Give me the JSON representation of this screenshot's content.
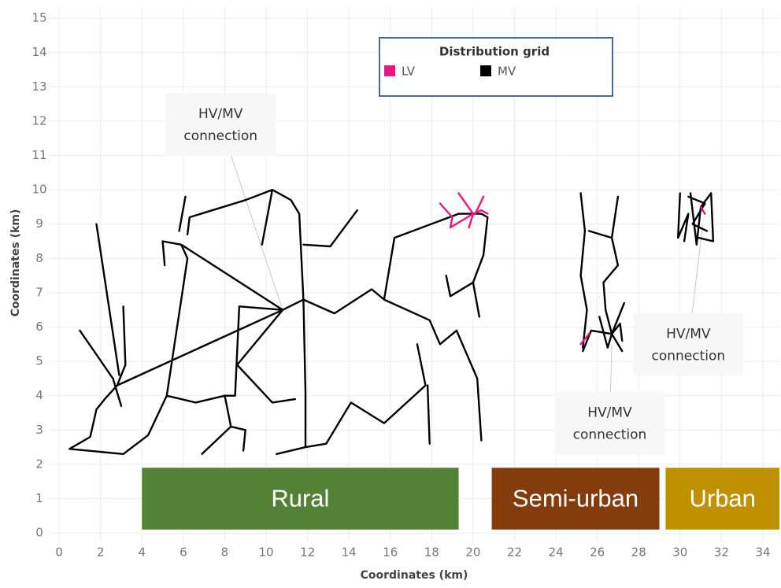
{
  "chart_data": {
    "type": "network",
    "xlabel": "Coordinates (km)",
    "ylabel": "Coordinates (km)",
    "xlim": [
      -0.5,
      34.8
    ],
    "ylim": [
      -0.25,
      15.3
    ],
    "xticks": [
      0,
      2,
      4,
      6,
      8,
      10,
      12,
      14,
      16,
      18,
      20,
      22,
      24,
      26,
      28,
      30,
      32,
      34
    ],
    "yticks": [
      0,
      1,
      2,
      3,
      4,
      5,
      6,
      7,
      8,
      9,
      10,
      11,
      12,
      13,
      14,
      15
    ],
    "grid": true,
    "legend": {
      "title": "Distribution grid",
      "position": "top"
    },
    "series": [
      {
        "name": "LV",
        "color": "#e8177b",
        "x": [
          18.4,
          19.0,
          18.9,
          20.0,
          20.4,
          20.7,
          null,
          19.3,
          20.0,
          19.8,
          null,
          20.5,
          20.1,
          null,
          25.2,
          25.6,
          null,
          31.0,
          31.2
        ],
        "y": [
          9.6,
          9.2,
          8.9,
          9.3,
          9.4,
          9.3,
          null,
          9.9,
          9.3,
          8.9,
          null,
          9.8,
          9.3,
          null,
          5.5,
          5.8,
          null,
          9.5,
          9.3
        ]
      },
      {
        "name": "MV",
        "color": "#000000",
        "x": [
          10.8,
          2.8,
          null,
          10.8,
          5.9,
          null,
          10.8,
          8.6,
          null,
          0.5,
          1.5,
          1.8,
          2.2,
          2.8,
          3.2,
          3.1,
          null,
          1.8,
          2.9,
          null,
          1.0,
          2.6,
          3.0,
          null,
          0.5,
          3.1,
          4.3,
          5.2,
          6.2,
          5.9,
          5.0,
          5.1,
          null,
          6.1,
          5.8,
          null,
          6.2,
          6.3,
          9.0,
          10.3,
          11.2,
          11.6,
          11.8,
          null,
          9.8,
          10.3,
          null,
          11.8,
          13.1,
          14.4,
          null,
          10.8,
          11.8,
          13.3,
          15.1,
          15.7,
          17.9,
          18.4,
          19.2,
          20.2,
          20.4,
          null,
          15.7,
          16.2,
          19.3,
          20.4,
          20.7,
          20.5,
          20.0,
          18.9,
          18.7,
          null,
          20.0,
          20.3,
          null,
          11.8,
          11.9,
          11.9,
          10.5,
          null,
          11.9,
          12.9,
          14.1,
          15.7,
          17.7,
          17.3,
          null,
          17.8,
          17.9,
          null,
          10.8,
          8.7,
          8.5,
          8.0,
          6.6,
          5.2,
          null,
          8.0,
          8.3,
          6.9,
          null,
          8.3,
          9.0,
          8.9,
          null,
          8.6,
          10.3,
          11.4,
          null,
          25.2,
          25.4,
          25.2,
          25.5,
          25.3,
          null,
          27.0,
          26.7,
          25.6,
          null,
          26.7,
          27.0,
          26.3,
          26.4,
          26.7,
          27.3,
          null,
          26.7,
          25.7,
          25.3,
          null,
          26.7,
          27.2,
          null,
          26.7,
          26.5,
          26.1,
          null,
          26.7,
          27.1,
          27.2,
          null,
          30.0,
          29.9,
          30.4,
          30.2,
          null,
          30.5,
          30.8,
          31.0,
          31.5,
          31.6,
          30.9,
          null,
          30.4,
          31.2,
          30.6,
          31.3
        ],
        "y": [
          6.5,
          4.3,
          null,
          6.5,
          8.4,
          null,
          6.5,
          4.9,
          null,
          2.45,
          2.8,
          3.6,
          3.9,
          4.3,
          4.9,
          6.6,
          null,
          9.0,
          4.6,
          null,
          5.9,
          4.5,
          3.7,
          null,
          2.45,
          2.3,
          2.85,
          4.0,
          8.0,
          8.4,
          8.5,
          7.8,
          null,
          9.8,
          8.8,
          null,
          8.7,
          9.2,
          9.7,
          10.0,
          9.7,
          9.3,
          6.8,
          null,
          8.4,
          10.0,
          null,
          8.4,
          8.35,
          9.4,
          null,
          6.5,
          6.8,
          6.4,
          7.1,
          6.8,
          6.2,
          5.5,
          5.9,
          4.5,
          2.7,
          null,
          6.8,
          8.6,
          9.3,
          9.3,
          9.2,
          8.1,
          7.3,
          6.9,
          7.5,
          null,
          7.3,
          6.3,
          null,
          6.8,
          4.1,
          2.5,
          2.3,
          null,
          2.5,
          2.6,
          3.8,
          3.2,
          4.3,
          5.5,
          null,
          4.3,
          2.6,
          null,
          6.5,
          6.6,
          4.0,
          4.0,
          3.8,
          4.0,
          null,
          4.0,
          3.1,
          2.3,
          null,
          3.1,
          3.0,
          2.4,
          null,
          4.9,
          3.8,
          3.9,
          null,
          9.9,
          8.8,
          7.5,
          6.5,
          5.4,
          null,
          9.8,
          8.6,
          8.8,
          null,
          8.6,
          7.8,
          7.3,
          6.5,
          5.8,
          6.7,
          null,
          5.8,
          5.9,
          5.3,
          null,
          5.8,
          5.3,
          null,
          5.8,
          5.4,
          6.3,
          null,
          5.8,
          6.1,
          5.6,
          null,
          9.9,
          8.6,
          9.3,
          8.5,
          null,
          9.9,
          8.4,
          9.5,
          9.9,
          8.5,
          8.6,
          null,
          9.8,
          9.6,
          9.0,
          8.8
        ]
      }
    ],
    "regions": [
      {
        "label": "Rural",
        "color": "#538135",
        "x": [
          4.0,
          19.3
        ],
        "y": [
          0.1,
          1.9
        ]
      },
      {
        "label": "Semi-urban",
        "color": "#843c0c",
        "x": [
          20.9,
          29.0
        ],
        "y": [
          0.1,
          1.9
        ]
      },
      {
        "label": "Urban",
        "color": "#bf9000",
        "x": [
          29.3,
          34.8
        ],
        "y": [
          0.1,
          1.9
        ]
      }
    ],
    "annotations": [
      {
        "text": [
          "HV/MV",
          "connection"
        ],
        "xy": [
          10.8,
          6.5
        ],
        "xytext": [
          7.8,
          11.9
        ]
      },
      {
        "text": [
          "HV/MV",
          "connection"
        ],
        "xy": [
          31.1,
          9.0
        ],
        "xytext": [
          30.4,
          5.5
        ]
      },
      {
        "text": [
          "HV/MV",
          "connection"
        ],
        "xy": [
          26.7,
          5.5
        ],
        "xytext": [
          26.6,
          3.2
        ]
      }
    ]
  }
}
